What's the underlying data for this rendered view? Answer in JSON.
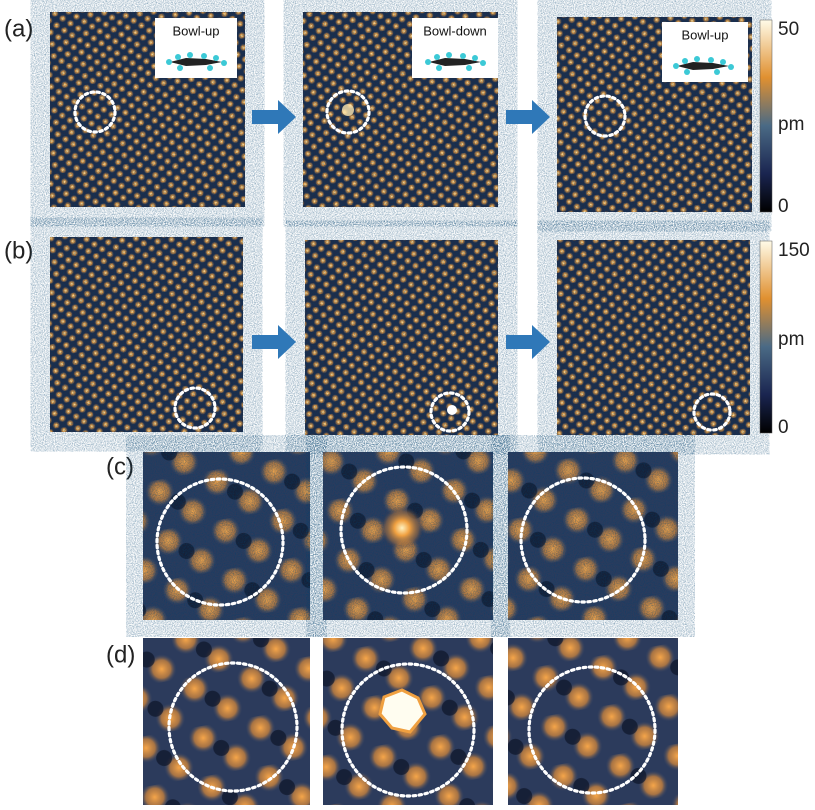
{
  "panels": [
    {
      "label": "(a)",
      "insets": [
        "Bowl-up",
        "Bowl-down",
        "Bowl-up"
      ],
      "colorbar": {
        "max": 50,
        "unit": "pm",
        "min": 0
      }
    },
    {
      "label": "(b)",
      "colorbar": {
        "max": 150,
        "unit": "pm",
        "min": 0
      }
    },
    {
      "label": "(c)"
    },
    {
      "label": "(d)"
    }
  ]
}
